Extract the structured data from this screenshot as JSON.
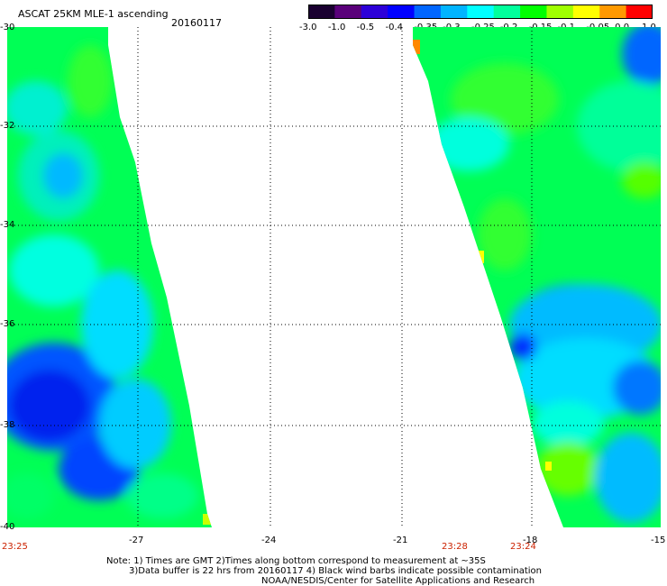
{
  "header": {
    "title": "ASCAT 25KM MLE-1 ascending",
    "date": "20160117"
  },
  "colorbar": {
    "labels": [
      "-3.0",
      "-1.0",
      "-0.5",
      "-0.4",
      "-0.35",
      "-0.3",
      "-0.25",
      "-0.2",
      "-0.15",
      "-0.1",
      "-0.05",
      "0.0",
      "1.0"
    ],
    "colors": [
      "#1a0030",
      "#5a007a",
      "#2d00d8",
      "#0000ff",
      "#0066ff",
      "#00b4ff",
      "#00ffff",
      "#00ff9c",
      "#00ff00",
      "#a0ff00",
      "#ffff00",
      "#ff9900",
      "#ff0000"
    ]
  },
  "map": {
    "lat_labels": [
      "-30",
      "-32",
      "-34",
      "-36",
      "-38",
      "-40"
    ],
    "lon_labels": [
      "-27",
      "-24",
      "-21",
      "-18",
      "-15"
    ],
    "time_labels": [
      "23:25",
      "23:28",
      "23:24"
    ]
  },
  "notes": {
    "line1": "Note: 1) Times are GMT 2)Times along bottom correspond to measurement at ~35S",
    "line2": "3)Data buffer is 22 hrs from 20160117 4) Black wind barbs indicate possible contamination",
    "line3": "NOAA/NESDIS/Center for Satellite Applications and Research"
  }
}
